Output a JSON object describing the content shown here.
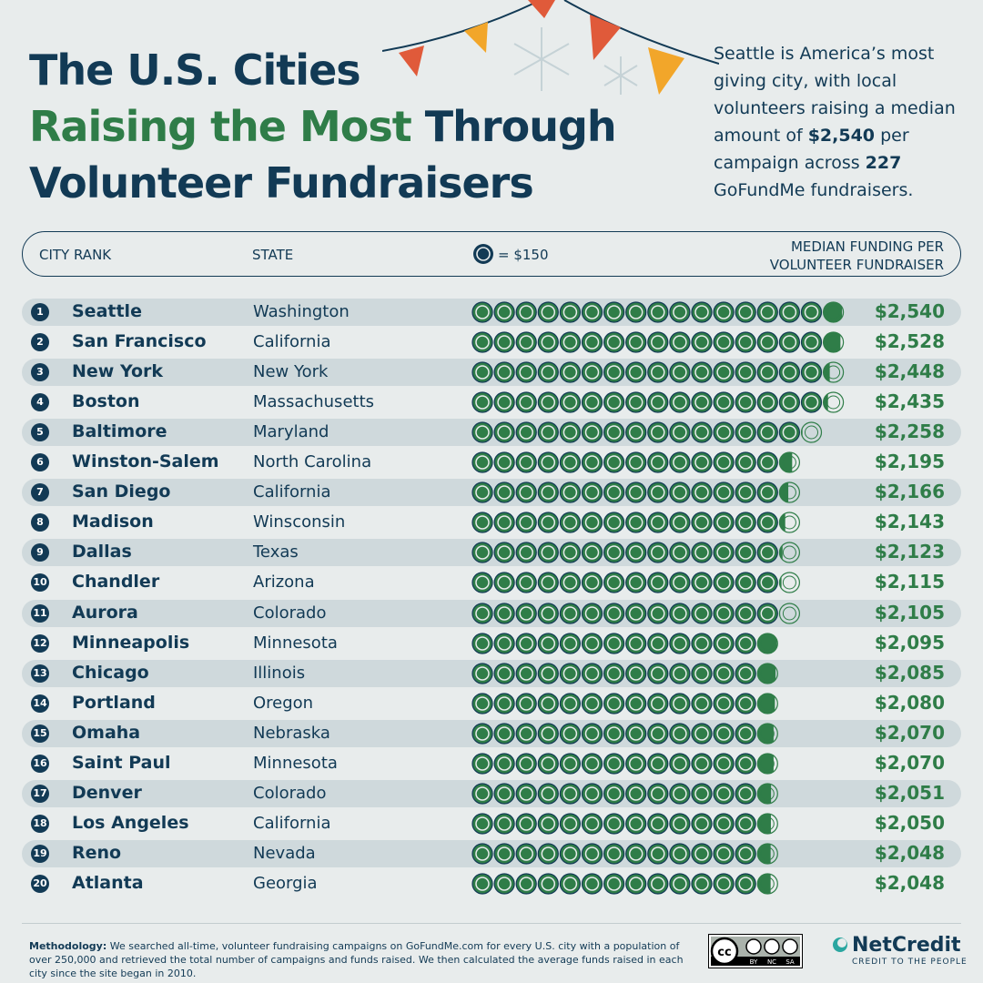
{
  "title": {
    "line1": "The U.S. Cities",
    "line2_green": "Raising the Most",
    "line2_rest": " Through",
    "line3": "Volunteer Fundraisers"
  },
  "intro": {
    "part1": "Seattle is America’s most giving city, with local volunteers raising a median amount of ",
    "amount": "$2,540",
    "part2": " per campaign across ",
    "count": "227",
    "part3": " GoFundMe fundraisers."
  },
  "header": {
    "city_rank": "CITY RANK",
    "state": "STATE",
    "legend": "= $150",
    "median_line1": "MEDIAN FUNDING PER",
    "median_line2": "VOLUNTEER FUNDRAISER"
  },
  "colors": {
    "navy": "#123a55",
    "green": "#2f7d48",
    "row_shade": "#cfd9dc",
    "background": "#e8ecec",
    "bunting_red": "#e05a3a",
    "bunting_orange": "#f2a62a"
  },
  "chart_data": {
    "type": "bar",
    "unit_per_icon": 150,
    "ylabel": "MEDIAN FUNDING PER VOLUNTEER FUNDRAISER",
    "rows": [
      {
        "rank": "1",
        "city": "Seattle",
        "state": "Washington",
        "value": 2540,
        "label": "$2,540"
      },
      {
        "rank": "2",
        "city": "San Francisco",
        "state": "California",
        "value": 2528,
        "label": "$2,528"
      },
      {
        "rank": "3",
        "city": "New York",
        "state": "New York",
        "value": 2448,
        "label": "$2,448"
      },
      {
        "rank": "4",
        "city": "Boston",
        "state": "Massachusetts",
        "value": 2435,
        "label": "$2,435"
      },
      {
        "rank": "5",
        "city": "Baltimore",
        "state": "Maryland",
        "value": 2258,
        "label": "$2,258"
      },
      {
        "rank": "6",
        "city": "Winston-Salem",
        "state": "North Carolina",
        "value": 2195,
        "label": "$2,195"
      },
      {
        "rank": "7",
        "city": "San Diego",
        "state": "California",
        "value": 2166,
        "label": "$2,166"
      },
      {
        "rank": "8",
        "city": "Madison",
        "state": "Winsconsin",
        "value": 2143,
        "label": "$2,143"
      },
      {
        "rank": "9",
        "city": "Dallas",
        "state": "Texas",
        "value": 2123,
        "label": "$2,123"
      },
      {
        "rank": "10",
        "city": "Chandler",
        "state": "Arizona",
        "value": 2115,
        "label": "$2,115"
      },
      {
        "rank": "11",
        "city": "Aurora",
        "state": "Colorado",
        "value": 2105,
        "label": "$2,105"
      },
      {
        "rank": "12",
        "city": "Minneapolis",
        "state": "Minnesota",
        "value": 2095,
        "label": "$2,095"
      },
      {
        "rank": "13",
        "city": "Chicago",
        "state": "Illinois",
        "value": 2085,
        "label": "$2,085"
      },
      {
        "rank": "14",
        "city": "Portland",
        "state": "Oregon",
        "value": 2080,
        "label": "$2,080"
      },
      {
        "rank": "15",
        "city": "Omaha",
        "state": "Nebraska",
        "value": 2070,
        "label": "$2,070"
      },
      {
        "rank": "16",
        "city": "Saint Paul",
        "state": "Minnesota",
        "value": 2070,
        "label": "$2,070"
      },
      {
        "rank": "17",
        "city": "Denver",
        "state": "Colorado",
        "value": 2051,
        "label": "$2,051"
      },
      {
        "rank": "18",
        "city": "Los Angeles",
        "state": "California",
        "value": 2050,
        "label": "$2,050"
      },
      {
        "rank": "19",
        "city": "Reno",
        "state": "Nevada",
        "value": 2048,
        "label": "$2,048"
      },
      {
        "rank": "20",
        "city": "Atlanta",
        "state": "Georgia",
        "value": 2048,
        "label": "$2,048"
      }
    ]
  },
  "footer": {
    "methodology_label": "Methodology:",
    "methodology_text": " We searched all-time, volunteer fundraising campaigns on GoFundMe.com for every U.S. city with a population of over 250,000 and retrieved the total number of campaigns and funds raised. We then calculated the average funds raised in each city since the site began in 2010.",
    "license": [
      "BY",
      "NC",
      "SA"
    ],
    "brand_name": "NetCredit",
    "brand_tagline": "CREDIT TO THE PEOPLE"
  }
}
